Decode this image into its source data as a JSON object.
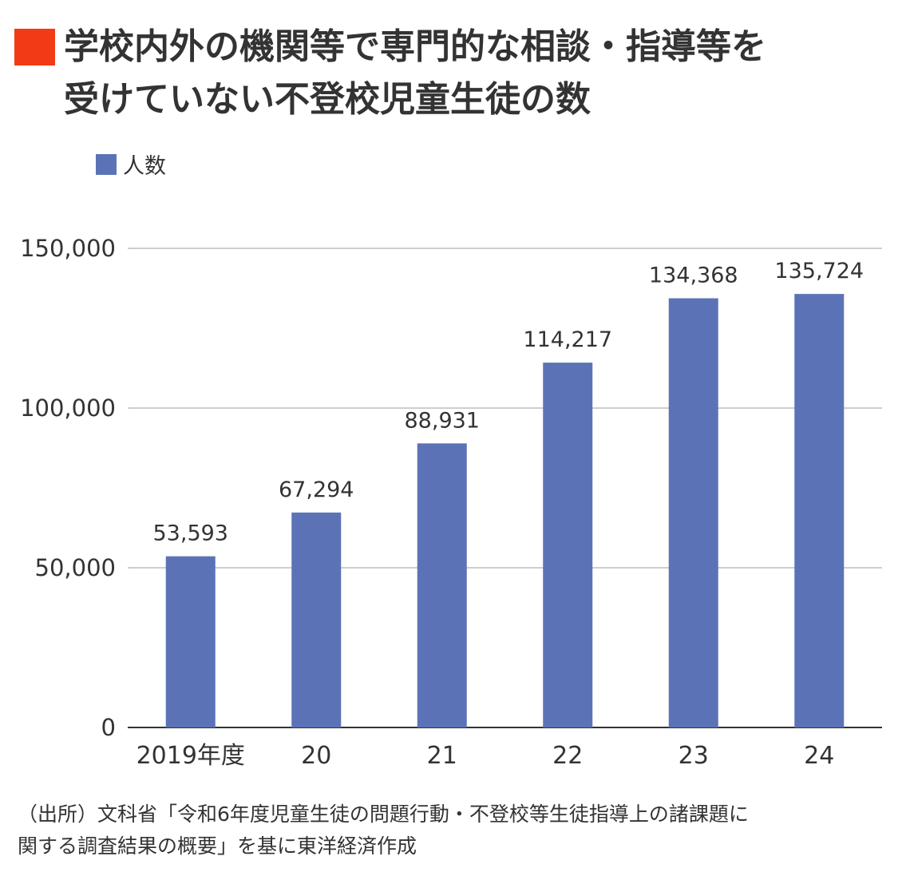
{
  "title": "学校内外の機関等で専門的な相談・指導等を\n受けていない不登校児童生徒の数",
  "legend": {
    "label": "人数"
  },
  "source": "（出所）文科省「令和6年度児童生徒の問題行動・不登校等生徒指導上の諸課題に\n関する調査結果の概要」を基に東洋経済作成",
  "colors": {
    "bar": "#5b73b6",
    "title_marker": "#f23a14",
    "grid": "#bdbdbd",
    "axis": "#333333",
    "text": "#333333"
  },
  "chart_data": {
    "type": "bar",
    "categories": [
      "2019年度",
      "20",
      "21",
      "22",
      "23",
      "24"
    ],
    "series": [
      {
        "name": "人数",
        "values": [
          53593,
          67294,
          88931,
          114217,
          134368,
          135724
        ]
      }
    ],
    "data_labels": [
      "53,593",
      "67,294",
      "88,931",
      "114,217",
      "134,368",
      "135,724"
    ],
    "y_ticks": [
      0,
      50000,
      100000,
      150000
    ],
    "y_tick_labels": [
      "0",
      "50,000",
      "100,000",
      "150,000"
    ],
    "ylim": [
      0,
      150000
    ],
    "grid": true,
    "legend_position": "top-left"
  }
}
